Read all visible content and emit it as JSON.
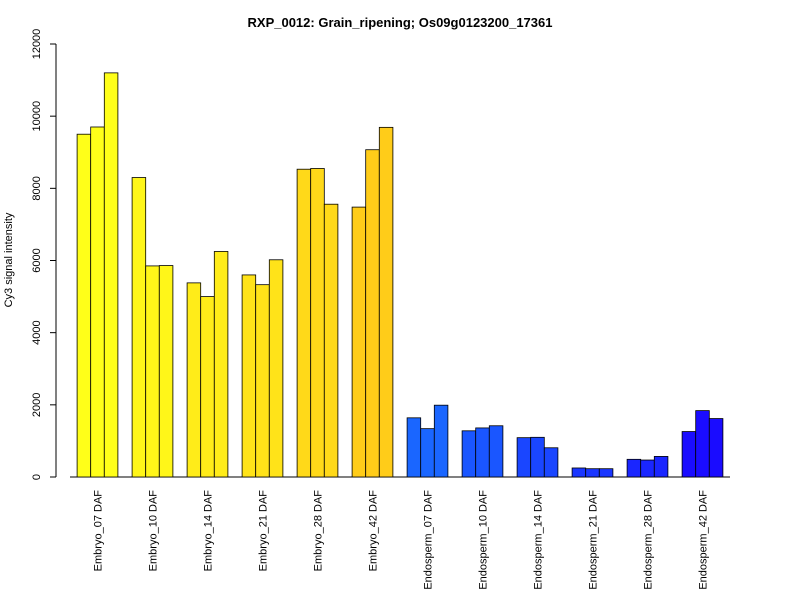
{
  "chart_data": {
    "type": "bar",
    "title": "RXP_0012: Grain_ripening; Os09g0123200_17361",
    "xlabel": "",
    "ylabel": "Cy3 signal intensity",
    "ylim": [
      0,
      12000
    ],
    "y_ticks": [
      0,
      2000,
      4000,
      6000,
      8000,
      10000,
      12000
    ],
    "legend": "none",
    "grid": false,
    "categories": [
      "Embryo_07 DAF",
      "Embryo_10 DAF",
      "Embryo_14 DAF",
      "Embryo_21 DAF",
      "Embryo_28 DAF",
      "Embryo_42 DAF",
      "Endosperm_07 DAF",
      "Endosperm_10 DAF",
      "Endosperm_14 DAF",
      "Endosperm_21 DAF",
      "Endosperm_28 DAF",
      "Endosperm_42 DAF"
    ],
    "group_colors": [
      "#ffff19",
      "#fff619",
      "#ffec19",
      "#ffe319",
      "#ffd919",
      "#ffcc19",
      "#1a66ff",
      "#1a56ff",
      "#1a46ff",
      "#1a36ff",
      "#1a26ff",
      "#1a0cff"
    ],
    "values": [
      [
        9500,
        9700,
        11200
      ],
      [
        8300,
        5850,
        5860
      ],
      [
        5380,
        5000,
        6250
      ],
      [
        5600,
        5330,
        6020
      ],
      [
        8530,
        8550,
        7560
      ],
      [
        7480,
        9070,
        9690
      ],
      [
        1640,
        1340,
        1990
      ],
      [
        1280,
        1360,
        1420
      ],
      [
        1090,
        1100,
        810
      ],
      [
        250,
        230,
        230
      ],
      [
        490,
        470,
        570
      ],
      [
        1260,
        1840,
        1620
      ]
    ]
  }
}
